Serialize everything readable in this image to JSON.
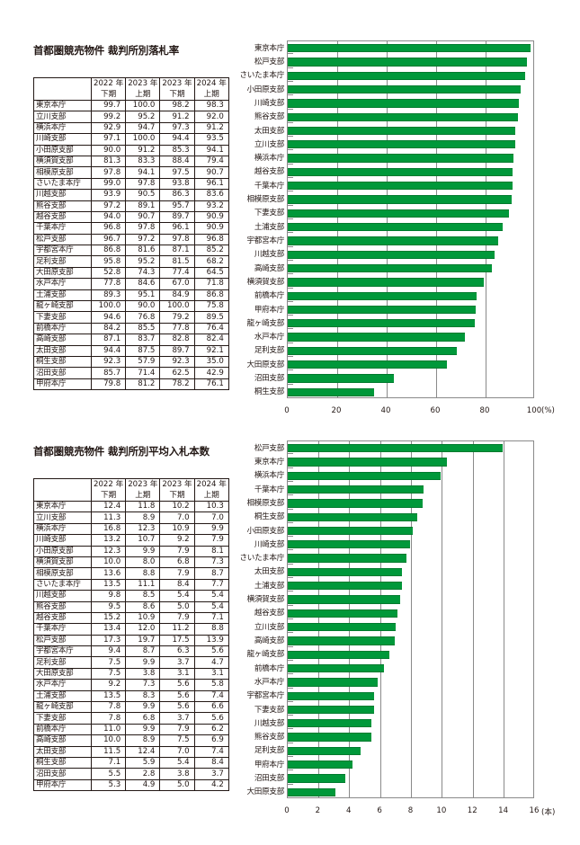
{
  "section1": {
    "title": "首都圏競売物件  裁判所別落札率",
    "table": {
      "headers": [
        {
          "line1": "2022 年",
          "line2": "下期"
        },
        {
          "line1": "2023 年",
          "line2": "上期"
        },
        {
          "line1": "2023 年",
          "line2": "下期"
        },
        {
          "line1": "2024 年",
          "line2": "上期"
        }
      ],
      "rows": [
        {
          "name": "東京本庁",
          "values": [
            "99.7",
            "100.0",
            "98.2",
            "98.3"
          ]
        },
        {
          "name": "立川支部",
          "values": [
            "99.2",
            "95.2",
            "91.2",
            "92.0"
          ]
        },
        {
          "name": "横浜本庁",
          "values": [
            "92.9",
            "94.7",
            "97.3",
            "91.2"
          ]
        },
        {
          "name": "川崎支部",
          "values": [
            "97.1",
            "100.0",
            "94.4",
            "93.5"
          ]
        },
        {
          "name": "小田原支部",
          "values": [
            "90.0",
            "91.2",
            "85.3",
            "94.1"
          ]
        },
        {
          "name": "横須賀支部",
          "values": [
            "81.3",
            "83.3",
            "88.4",
            "79.4"
          ]
        },
        {
          "name": "相模原支部",
          "values": [
            "97.8",
            "94.1",
            "97.5",
            "90.7"
          ]
        },
        {
          "name": "さいたま本庁",
          "values": [
            "99.0",
            "97.8",
            "93.8",
            "96.1"
          ]
        },
        {
          "name": "川越支部",
          "values": [
            "93.9",
            "90.5",
            "86.3",
            "83.6"
          ]
        },
        {
          "name": "熊谷支部",
          "values": [
            "97.2",
            "89.1",
            "95.7",
            "93.2"
          ]
        },
        {
          "name": "越谷支部",
          "values": [
            "94.0",
            "90.7",
            "89.7",
            "90.9"
          ]
        },
        {
          "name": "千葉本庁",
          "values": [
            "96.8",
            "97.8",
            "96.1",
            "90.9"
          ]
        },
        {
          "name": "松戸支部",
          "values": [
            "96.7",
            "97.2",
            "97.8",
            "96.8"
          ]
        },
        {
          "name": "宇都宮本庁",
          "values": [
            "86.8",
            "81.6",
            "87.1",
            "85.2"
          ]
        },
        {
          "name": "足利支部",
          "values": [
            "95.8",
            "95.2",
            "81.5",
            "68.2"
          ]
        },
        {
          "name": "大田原支部",
          "values": [
            "52.8",
            "74.3",
            "77.4",
            "64.5"
          ]
        },
        {
          "name": "水戸本庁",
          "values": [
            "77.8",
            "84.6",
            "67.0",
            "71.8"
          ]
        },
        {
          "name": "土浦支部",
          "values": [
            "89.3",
            "95.1",
            "84.9",
            "86.8"
          ]
        },
        {
          "name": "龍ヶ崎支部",
          "values": [
            "100.0",
            "90.0",
            "100.0",
            "75.8"
          ]
        },
        {
          "name": "下妻支部",
          "values": [
            "94.6",
            "76.8",
            "79.2",
            "89.5"
          ]
        },
        {
          "name": "前橋本庁",
          "values": [
            "84.2",
            "85.5",
            "77.8",
            "76.4"
          ]
        },
        {
          "name": "高崎支部",
          "values": [
            "87.1",
            "83.7",
            "82.8",
            "82.4"
          ]
        },
        {
          "name": "太田支部",
          "values": [
            "94.4",
            "87.5",
            "89.7",
            "92.1"
          ]
        },
        {
          "name": "桐生支部",
          "values": [
            "92.3",
            "57.9",
            "92.3",
            "35.0"
          ]
        },
        {
          "name": "沼田支部",
          "values": [
            "85.7",
            "71.4",
            "62.5",
            "42.9"
          ]
        },
        {
          "name": "甲府本庁",
          "values": [
            "79.8",
            "81.2",
            "78.2",
            "76.1"
          ]
        }
      ]
    }
  },
  "section2": {
    "title": "首都圏競売物件  裁判所別平均入札本数",
    "table": {
      "headers": [
        {
          "line1": "2022 年",
          "line2": "下期"
        },
        {
          "line1": "2023 年",
          "line2": "上期"
        },
        {
          "line1": "2023 年",
          "line2": "下期"
        },
        {
          "line1": "2024 年",
          "line2": "上期"
        }
      ],
      "rows": [
        {
          "name": "東京本庁",
          "values": [
            "12.4",
            "11.8",
            "10.2",
            "10.3"
          ]
        },
        {
          "name": "立川支部",
          "values": [
            "11.3",
            "8.9",
            "7.0",
            "7.0"
          ]
        },
        {
          "name": "横浜本庁",
          "values": [
            "16.8",
            "12.3",
            "10.9",
            "9.9"
          ]
        },
        {
          "name": "川崎支部",
          "values": [
            "13.2",
            "10.7",
            "9.2",
            "7.9"
          ]
        },
        {
          "name": "小田原支部",
          "values": [
            "12.3",
            "9.9",
            "7.9",
            "8.1"
          ]
        },
        {
          "name": "横須賀支部",
          "values": [
            "10.0",
            "8.0",
            "6.8",
            "7.3"
          ]
        },
        {
          "name": "相模原支部",
          "values": [
            "13.6",
            "8.8",
            "7.9",
            "8.7"
          ]
        },
        {
          "name": "さいたま本庁",
          "values": [
            "13.5",
            "11.1",
            "8.4",
            "7.7"
          ]
        },
        {
          "name": "川越支部",
          "values": [
            "9.8",
            "8.5",
            "5.4",
            "5.4"
          ]
        },
        {
          "name": "熊谷支部",
          "values": [
            "9.5",
            "8.6",
            "5.0",
            "5.4"
          ]
        },
        {
          "name": "越谷支部",
          "values": [
            "15.2",
            "10.9",
            "7.9",
            "7.1"
          ]
        },
        {
          "name": "千葉本庁",
          "values": [
            "13.4",
            "12.0",
            "11.2",
            "8.8"
          ]
        },
        {
          "name": "松戸支部",
          "values": [
            "17.3",
            "19.7",
            "17.5",
            "13.9"
          ]
        },
        {
          "name": "宇都宮本庁",
          "values": [
            "9.4",
            "8.7",
            "6.3",
            "5.6"
          ]
        },
        {
          "name": "足利支部",
          "values": [
            "7.5",
            "9.9",
            "3.7",
            "4.7"
          ]
        },
        {
          "name": "大田原支部",
          "values": [
            "7.5",
            "3.8",
            "3.1",
            "3.1"
          ]
        },
        {
          "name": "水戸本庁",
          "values": [
            "9.2",
            "7.3",
            "5.6",
            "5.8"
          ]
        },
        {
          "name": "土浦支部",
          "values": [
            "13.5",
            "8.3",
            "5.6",
            "7.4"
          ]
        },
        {
          "name": "龍ヶ崎支部",
          "values": [
            "7.8",
            "9.9",
            "5.6",
            "6.6"
          ]
        },
        {
          "name": "下妻支部",
          "values": [
            "7.8",
            "6.8",
            "3.7",
            "5.6"
          ]
        },
        {
          "name": "前橋本庁",
          "values": [
            "11.0",
            "9.9",
            "7.9",
            "6.2"
          ]
        },
        {
          "name": "高崎支部",
          "values": [
            "10.0",
            "8.9",
            "7.5",
            "6.9"
          ]
        },
        {
          "name": "太田支部",
          "values": [
            "11.5",
            "12.4",
            "7.0",
            "7.4"
          ]
        },
        {
          "name": "桐生支部",
          "values": [
            "7.1",
            "5.9",
            "5.4",
            "8.4"
          ]
        },
        {
          "name": "沼田支部",
          "values": [
            "5.5",
            "2.8",
            "3.8",
            "3.7"
          ]
        },
        {
          "name": "甲府本庁",
          "values": [
            "5.3",
            "4.9",
            "5.0",
            "4.2"
          ]
        }
      ]
    }
  },
  "colors": {
    "bar": "#00983a",
    "grid": "#8a8a8a",
    "text": "#231815"
  },
  "chart_data": [
    {
      "type": "bar",
      "orientation": "horizontal",
      "title": "首都圏競売物件  裁判所別落札率",
      "series_name": "2024 年 上期",
      "categories": [
        "東京本庁",
        "松戸支部",
        "さいたま本庁",
        "小田原支部",
        "川崎支部",
        "熊谷支部",
        "太田支部",
        "立川支部",
        "横浜本庁",
        "越谷支部",
        "千葉本庁",
        "相模原支部",
        "下妻支部",
        "土浦支部",
        "宇都宮本庁",
        "川越支部",
        "高崎支部",
        "横須賀支部",
        "前橋本庁",
        "甲府本庁",
        "龍ヶ崎支部",
        "水戸本庁",
        "足利支部",
        "大田原支部",
        "沼田支部",
        "桐生支部"
      ],
      "values": [
        98.3,
        96.8,
        96.1,
        94.1,
        93.5,
        93.2,
        92.1,
        92.0,
        91.2,
        90.9,
        90.9,
        90.7,
        89.5,
        86.8,
        85.2,
        83.6,
        82.4,
        79.4,
        76.4,
        76.1,
        75.8,
        71.8,
        68.2,
        64.5,
        42.9,
        35.0
      ],
      "xlabel": "(%)",
      "xlim": [
        0,
        100
      ],
      "xticks": [
        "0",
        "20",
        "40",
        "60",
        "80",
        "100"
      ],
      "unit_label": "(%)",
      "grid": true
    },
    {
      "type": "bar",
      "orientation": "horizontal",
      "title": "首都圏競売物件  裁判所別平均入札本数",
      "series_name": "2024 年 上期",
      "categories": [
        "松戸支部",
        "東京本庁",
        "横浜本庁",
        "千葉本庁",
        "相模原支部",
        "桐生支部",
        "小田原支部",
        "川崎支部",
        "さいたま本庁",
        "太田支部",
        "土浦支部",
        "横須賀支部",
        "越谷支部",
        "立川支部",
        "高崎支部",
        "龍ヶ崎支部",
        "前橋本庁",
        "水戸本庁",
        "宇都宮本庁",
        "下妻支部",
        "川越支部",
        "熊谷支部",
        "足利支部",
        "甲府本庁",
        "沼田支部",
        "大田原支部"
      ],
      "values": [
        13.9,
        10.3,
        9.9,
        8.8,
        8.7,
        8.4,
        8.1,
        7.9,
        7.7,
        7.4,
        7.4,
        7.3,
        7.1,
        7.0,
        6.9,
        6.6,
        6.2,
        5.8,
        5.6,
        5.6,
        5.4,
        5.4,
        4.7,
        4.2,
        3.7,
        3.1
      ],
      "xlabel": "(本)",
      "xlim": [
        0,
        16
      ],
      "xticks": [
        "0",
        "2",
        "4",
        "6",
        "8",
        "10",
        "12",
        "14",
        "16"
      ],
      "unit_label": "(本)",
      "grid": true
    }
  ]
}
